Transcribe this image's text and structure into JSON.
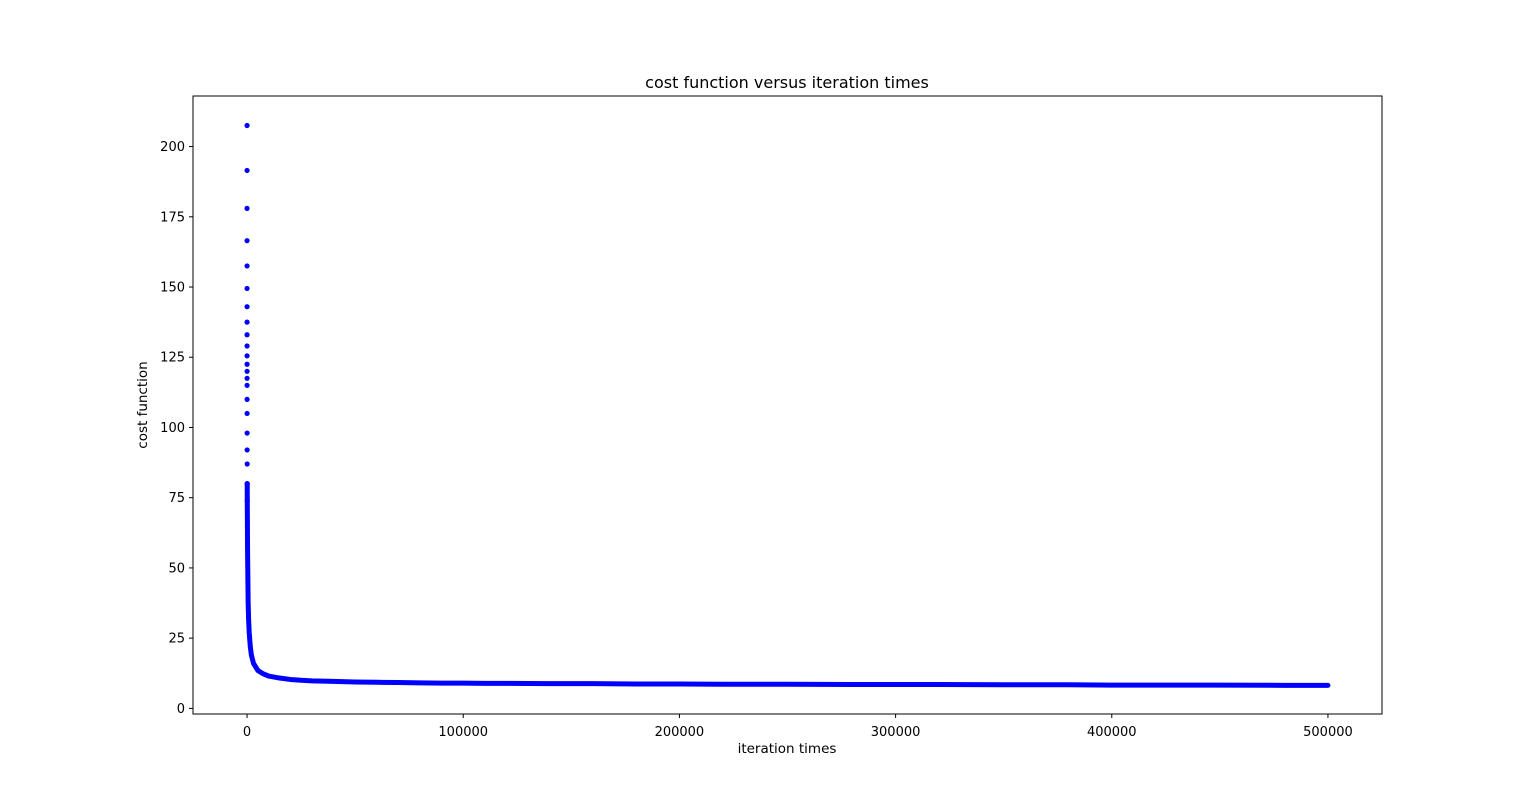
{
  "chart_data": {
    "type": "scatter",
    "title": "cost function versus iteration times",
    "xlabel": "iteration times",
    "ylabel": "cost function",
    "xlim": [
      -25000,
      525000
    ],
    "ylim": [
      -2,
      218
    ],
    "xticks": [
      0,
      100000,
      200000,
      300000,
      400000,
      500000
    ],
    "xtick_labels": [
      "0",
      "100000",
      "200000",
      "300000",
      "400000",
      "500000"
    ],
    "yticks": [
      0,
      25,
      50,
      75,
      100,
      125,
      150,
      175,
      200
    ],
    "ytick_labels": [
      "0",
      "25",
      "50",
      "75",
      "100",
      "125",
      "150",
      "175",
      "200"
    ],
    "grid": false,
    "legend": "none",
    "marker_color": "#0000ff",
    "series": [
      {
        "x": [
          1,
          2,
          3,
          4,
          5,
          6,
          7,
          8,
          9,
          10,
          12,
          14,
          16,
          18,
          20,
          25,
          30,
          40,
          50,
          60,
          80,
          100,
          150,
          200,
          300,
          400,
          500,
          700,
          1000,
          1500,
          2000,
          3000,
          5000,
          7500,
          10000,
          15000,
          20000,
          25000,
          30000,
          40000,
          50000,
          60000,
          70000,
          80000,
          90000,
          100000,
          110000,
          120000,
          140000,
          160000,
          180000,
          200000,
          220000,
          250000,
          280000,
          300000,
          320000,
          350000,
          380000,
          400000,
          420000,
          450000,
          480000,
          500000
        ],
        "y": [
          207.5,
          191.5,
          178,
          166.5,
          157.5,
          149.5,
          143,
          137.5,
          133,
          129,
          125.5,
          122.5,
          120,
          117.5,
          115,
          110,
          105,
          98,
          92,
          87,
          80,
          74,
          68,
          60,
          52,
          45,
          38,
          32,
          27,
          22,
          19,
          16,
          13.5,
          12.3,
          11.5,
          10.8,
          10.3,
          10,
          9.8,
          9.6,
          9.4,
          9.3,
          9.2,
          9.1,
          9.0,
          9.0,
          8.9,
          8.9,
          8.8,
          8.8,
          8.7,
          8.7,
          8.6,
          8.6,
          8.5,
          8.5,
          8.5,
          8.4,
          8.4,
          8.3,
          8.3,
          8.3,
          8.2,
          8.2
        ]
      }
    ]
  }
}
